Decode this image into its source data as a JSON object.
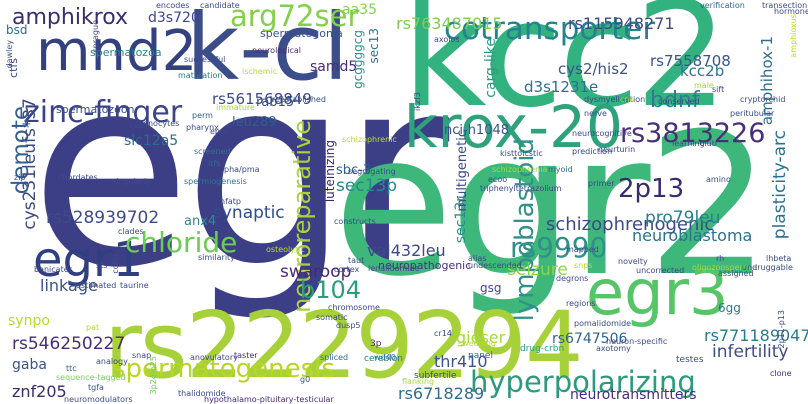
{
  "words": [
    {
      "text": "egr"
    },
    {
      "text": "egr2"
    },
    {
      "text": "kcc2"
    },
    {
      "text": "k-cl"
    },
    {
      "text": "rs2229294"
    },
    {
      "text": "mnd2"
    },
    {
      "text": "egr3"
    },
    {
      "text": "krox-20"
    },
    {
      "text": "egr1"
    },
    {
      "text": "cotransporter"
    },
    {
      "text": "hyperpolarizing"
    },
    {
      "text": "zinc-finger"
    },
    {
      "text": "chloride"
    },
    {
      "text": "arg72ser"
    },
    {
      "text": "amphikrox"
    },
    {
      "text": "demote"
    },
    {
      "text": "spermatogenesis"
    },
    {
      "text": "rs3813226"
    },
    {
      "text": "bdnf"
    },
    {
      "text": "2p13"
    },
    {
      "text": "rs9990"
    },
    {
      "text": "neuroreparative"
    },
    {
      "text": "lympoblastoid"
    },
    {
      "text": "b104"
    },
    {
      "text": "swaroop"
    },
    {
      "text": "rs528939702"
    },
    {
      "text": "rs546250227"
    },
    {
      "text": "cys231leufs*37"
    },
    {
      "text": "schizophrenogenic"
    },
    {
      "text": "neuroblastoma"
    },
    {
      "text": "pro79leu"
    },
    {
      "text": "seizure"
    },
    {
      "text": "val432leu"
    },
    {
      "text": "linkage"
    },
    {
      "text": "synaptic"
    },
    {
      "text": "sec13p"
    },
    {
      "text": "plasticity-arc"
    },
    {
      "text": "infertility"
    },
    {
      "text": "rs771189047"
    },
    {
      "text": "rs6718289"
    },
    {
      "text": "neurotransmitters"
    },
    {
      "text": "thr410"
    },
    {
      "text": "gieser"
    },
    {
      "text": "znf205"
    },
    {
      "text": "rs561568849"
    },
    {
      "text": "rs763487015"
    },
    {
      "text": "rs115948271"
    },
    {
      "text": "d3s1231e"
    },
    {
      "text": "cys2/his2"
    },
    {
      "text": "kcc2b"
    },
    {
      "text": "amphihox-1"
    },
    {
      "text": "rs7558708"
    },
    {
      "text": "rs6747506"
    },
    {
      "text": "slc12a5"
    },
    {
      "text": "samd5"
    },
    {
      "text": "anx4"
    },
    {
      "text": "leu289"
    },
    {
      "text": "rab15"
    },
    {
      "text": "nci-h1048"
    },
    {
      "text": "sbc-3"
    },
    {
      "text": "sec13r"
    },
    {
      "text": "carg-like"
    },
    {
      "text": "multigenetic"
    },
    {
      "text": "luteinizing"
    },
    {
      "text": "spermatozoa"
    },
    {
      "text": "spermatogonia"
    },
    {
      "text": "d3s720"
    },
    {
      "text": "aa35"
    },
    {
      "text": "sec13"
    },
    {
      "text": "gcggggcg"
    },
    {
      "text": "ctfs"
    },
    {
      "text": "bsd"
    },
    {
      "text": "spermatozoon"
    },
    {
      "text": "gaba"
    },
    {
      "text": "synpo"
    },
    {
      "text": "gsg"
    },
    {
      "text": "6gg"
    },
    {
      "text": "neuropathogenic"
    },
    {
      "text": "tgfa"
    },
    {
      "text": "wd40"
    },
    {
      "text": "hypothalamo-pituitary-testicular"
    },
    {
      "text": "neuromodulators"
    },
    {
      "text": "sequence-tagged"
    },
    {
      "text": "cereblon"
    },
    {
      "text": "3p"
    },
    {
      "text": "subfertile"
    },
    {
      "text": "panel"
    },
    {
      "text": "drug-crbn"
    },
    {
      "text": "testes"
    },
    {
      "text": "clone"
    },
    {
      "text": "nss"
    },
    {
      "text": "anovulatory"
    },
    {
      "text": "spliced"
    },
    {
      "text": "taster"
    },
    {
      "text": "snap"
    },
    {
      "text": "ttc"
    },
    {
      "text": "analogy"
    },
    {
      "text": "3p24-p25"
    },
    {
      "text": "chordates"
    },
    {
      "text": "encodes"
    },
    {
      "text": "candidate"
    },
    {
      "text": "verification"
    },
    {
      "text": "transection"
    },
    {
      "text": "neurological"
    },
    {
      "text": "fertility"
    },
    {
      "text": "successful"
    },
    {
      "text": "maturation"
    },
    {
      "text": "ischemic"
    },
    {
      "text": "reestablished"
    },
    {
      "text": "gonocytes"
    },
    {
      "text": "perm"
    },
    {
      "text": "immature"
    },
    {
      "text": "pharynx"
    },
    {
      "text": "screened"
    },
    {
      "text": "epor"
    },
    {
      "text": "itfs"
    },
    {
      "text": "pha/pma"
    },
    {
      "text": "zip"
    },
    {
      "text": "singularly"
    },
    {
      "text": "spermiogenesis"
    },
    {
      "text": "nfatp"
    },
    {
      "text": "clades"
    },
    {
      "text": "sts"
    },
    {
      "text": "estimated"
    },
    {
      "text": "taurine"
    },
    {
      "text": "similarity"
    },
    {
      "text": "osteolytic"
    },
    {
      "text": "segregating"
    },
    {
      "text": "schizophrenic"
    },
    {
      "text": "kisttoicstic"
    },
    {
      "text": "schizophrenia"
    },
    {
      "text": "dysmyelination"
    },
    {
      "text": "neurocognitive"
    },
    {
      "text": "prediction"
    },
    {
      "text": "myoid"
    },
    {
      "text": "ecoo"
    },
    {
      "text": "triphenyltetrazolium"
    },
    {
      "text": "primer"
    },
    {
      "text": "neurturin"
    },
    {
      "text": "amino"
    },
    {
      "text": "conserved"
    },
    {
      "text": "cryptorchid"
    },
    {
      "text": "peritubular"
    },
    {
      "text": "sift"
    },
    {
      "text": "male"
    },
    {
      "text": "learning"
    },
    {
      "text": "club"
    },
    {
      "text": "cns"
    },
    {
      "text": "nerve"
    },
    {
      "text": "ikzf3"
    },
    {
      "text": "axolos"
    },
    {
      "text": "taut"
    },
    {
      "text": "cortex"
    },
    {
      "text": "lenalidomide"
    },
    {
      "text": "constructs"
    },
    {
      "text": "dusp5"
    },
    {
      "text": "chromosome"
    },
    {
      "text": "somatic"
    },
    {
      "text": "undescended"
    },
    {
      "text": "alias"
    },
    {
      "text": "mapped"
    },
    {
      "text": "snps"
    },
    {
      "text": "novelty"
    },
    {
      "text": "regions"
    },
    {
      "text": "uncorrected"
    },
    {
      "text": "oligozoospermia"
    },
    {
      "text": "assigned"
    },
    {
      "text": "undruggable"
    },
    {
      "text": "lhbeta"
    },
    {
      "text": "rh"
    },
    {
      "text": "cr14"
    },
    {
      "text": "sweeping"
    },
    {
      "text": "neuron-specific"
    },
    {
      "text": "axotomy"
    },
    {
      "text": "g0"
    },
    {
      "text": "flanking"
    },
    {
      "text": "thalidomide"
    },
    {
      "text": "banicates"
    },
    {
      "text": "pat"
    },
    {
      "text": "cdbu"
    },
    {
      "text": "2p11-p13"
    },
    {
      "text": "hormone-containing"
    },
    {
      "text": "amphioxus"
    },
    {
      "text": "sprague"
    },
    {
      "text": "dawley"
    },
    {
      "text": "pomalidomide"
    },
    {
      "text": "degrons"
    },
    {
      "text": "rapid"
    },
    {
      "text": "closely"
    }
  ]
}
